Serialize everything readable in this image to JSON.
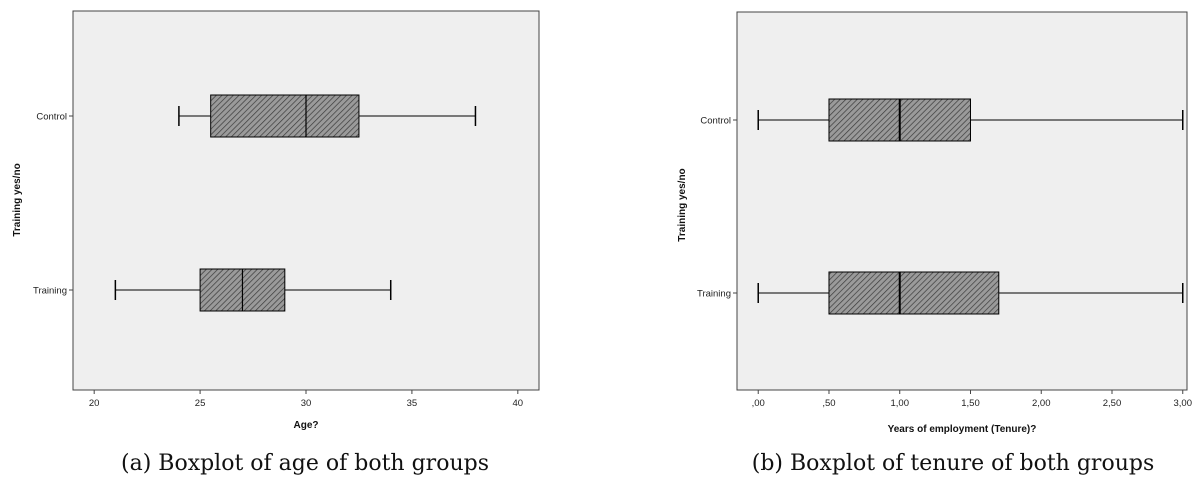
{
  "chart_data": [
    {
      "type": "boxplot",
      "orientation": "horizontal",
      "caption": "(a) Boxplot of age of both groups",
      "xlabel": "Age?",
      "ylabel": "Training yes/no",
      "xlim": [
        19,
        41
      ],
      "xticks": [
        20,
        25,
        30,
        35,
        40
      ],
      "xtick_labels": [
        "20",
        "25",
        "30",
        "35",
        "40"
      ],
      "categories": [
        "Control",
        "Training"
      ],
      "boxes": [
        {
          "category": "Control",
          "min": 24,
          "q1": 25.5,
          "median": 30,
          "q3": 32.5,
          "max": 38
        },
        {
          "category": "Training",
          "min": 21,
          "q1": 25,
          "median": 27,
          "q3": 29,
          "max": 34
        }
      ],
      "background": "#efefef",
      "box_fill": "#8c8c8c",
      "grid": false
    },
    {
      "type": "boxplot",
      "orientation": "horizontal",
      "caption": "(b) Boxplot of tenure of both groups",
      "xlabel": "Years of employment (Tenure)?",
      "ylabel": "Training yes/no",
      "xlim": [
        -0.15,
        3.03
      ],
      "xticks": [
        0,
        0.5,
        1,
        1.5,
        2,
        2.5,
        3
      ],
      "xtick_labels": [
        ",00",
        ",50",
        "1,00",
        "1,50",
        "2,00",
        "2,50",
        "3,00"
      ],
      "categories": [
        "Control",
        "Training"
      ],
      "boxes": [
        {
          "category": "Control",
          "min": 0,
          "q1": 0.5,
          "median": 1,
          "q3": 1.5,
          "max": 3
        },
        {
          "category": "Training",
          "min": 0,
          "q1": 0.5,
          "median": 1,
          "q3": 1.7,
          "max": 3
        }
      ],
      "background": "#efefef",
      "box_fill": "#8c8c8c",
      "grid": false
    }
  ]
}
